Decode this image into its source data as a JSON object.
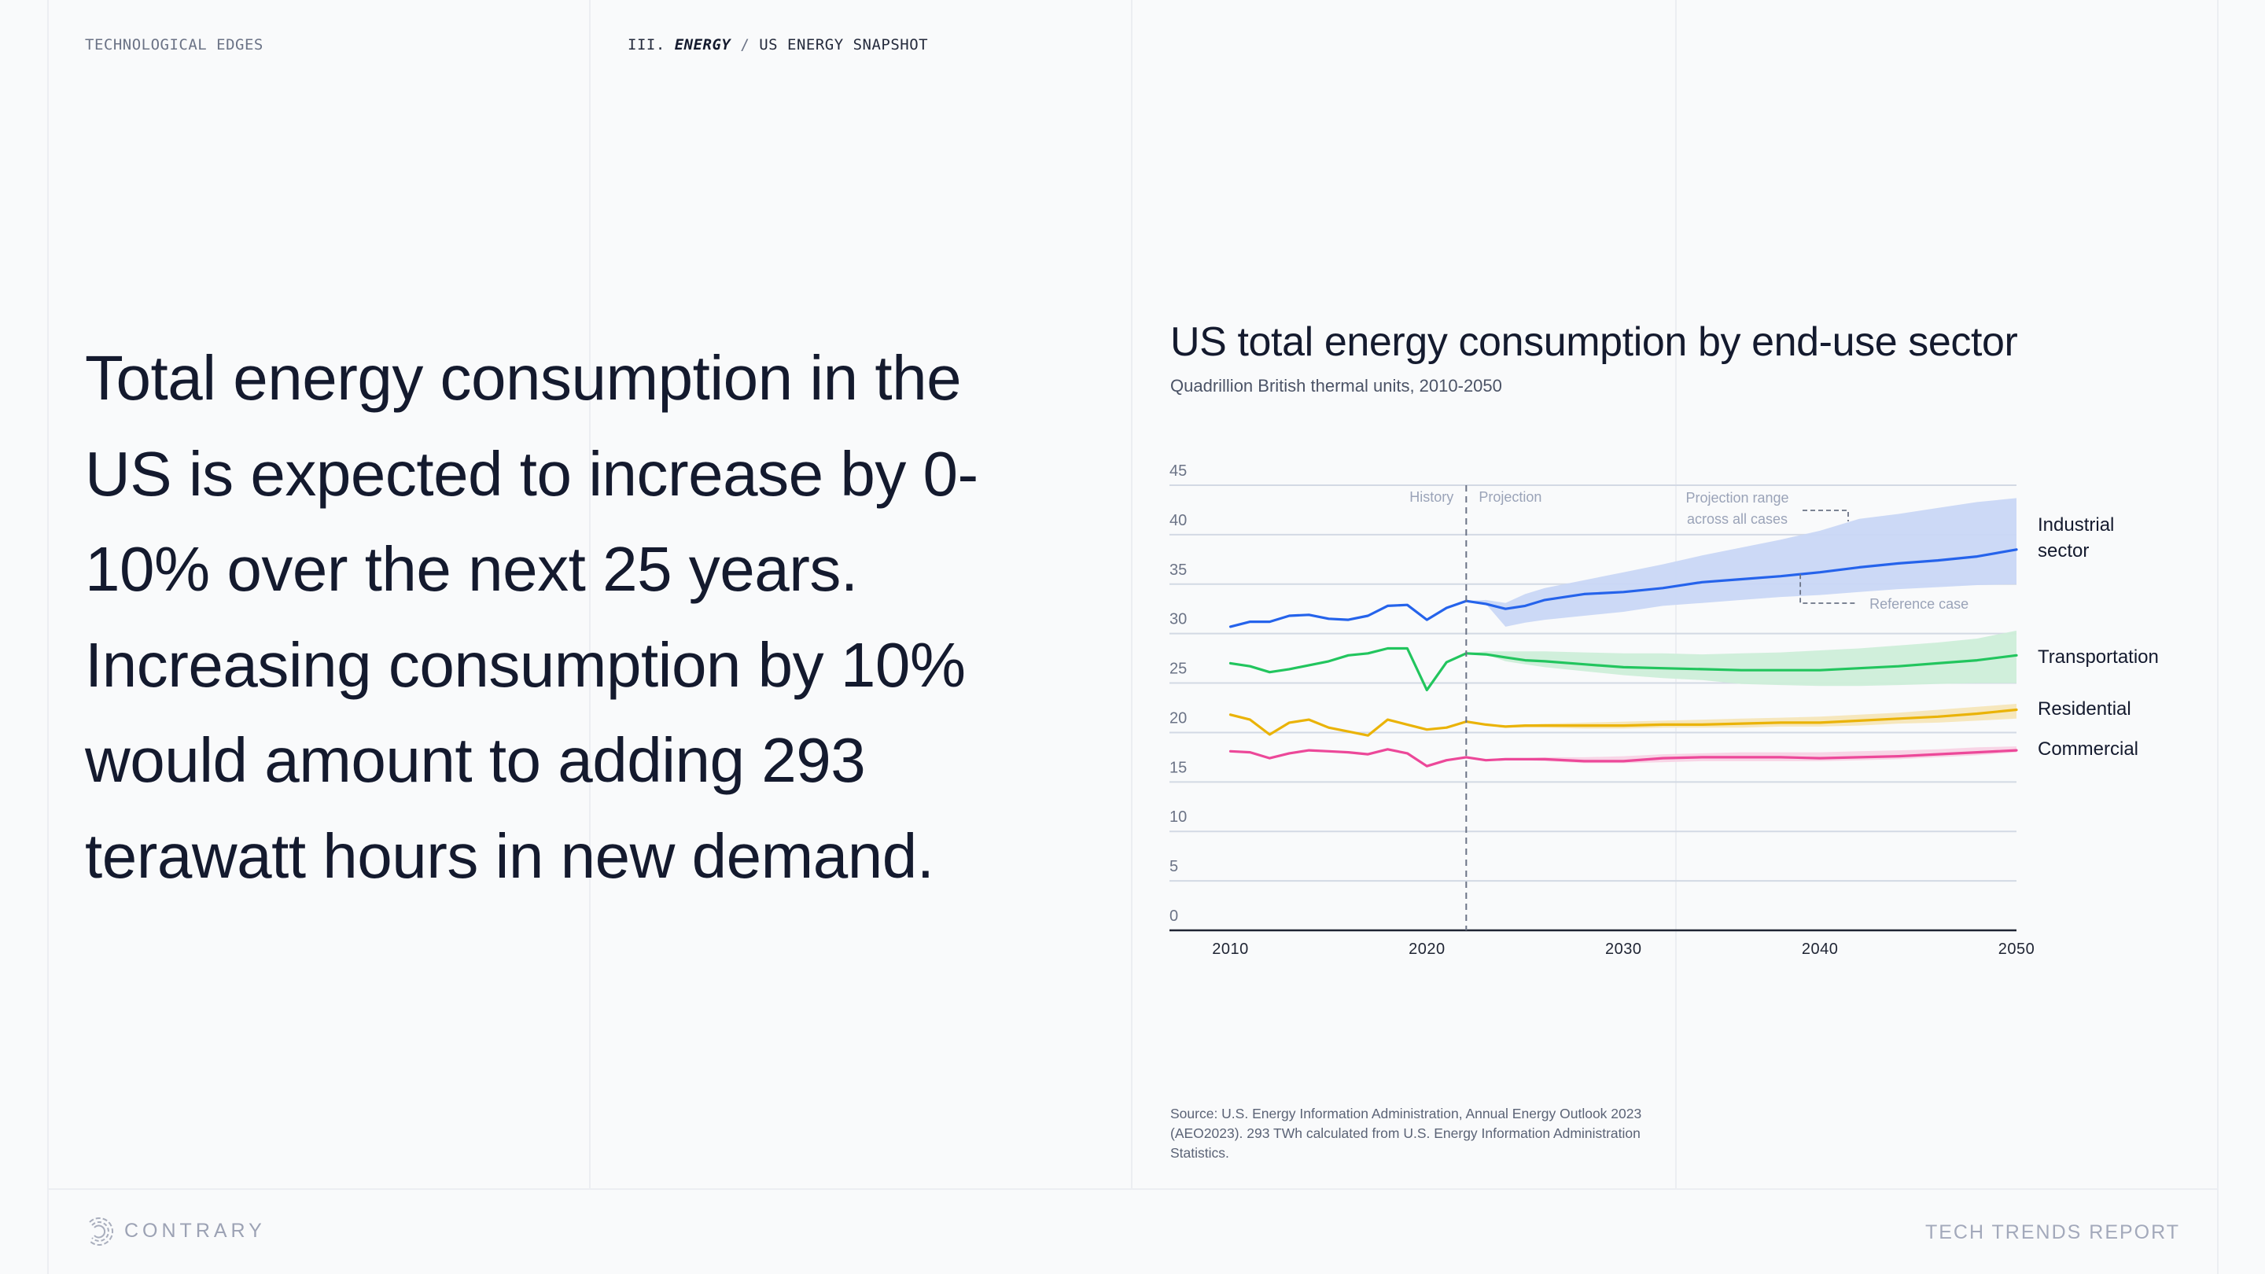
{
  "header": {
    "section_left": "TECHNOLOGICAL EDGES",
    "breadcrumb_prefix": "III.",
    "breadcrumb_section": "ENERGY",
    "breadcrumb_separator": "/",
    "breadcrumb_page": "US ENERGY SNAPSHOT"
  },
  "headline": "Total energy consumption in the US is expected to increase by 0-10% over the next 25 years. Increasing consumption by 10% would amount to adding 293 terawatt hours in new demand.",
  "footer": {
    "brand": "CONTRARY",
    "report": "TECH TRENDS REPORT",
    "logo_icon": "contrary-logo-icon"
  },
  "source": "Source: U.S. Energy Information Administration, Annual Energy Outlook 2023 (AEO2023). 293 TWh calculated from U.S. Energy Information Administration Statistics.",
  "chart_data": {
    "type": "line",
    "title": "US total energy consumption by end-use sector",
    "subtitle": "Quadrillion British thermal units, 2010-2050",
    "xlabel": "",
    "ylabel": "",
    "xlim": [
      2006.9,
      2050
    ],
    "ylim": [
      0,
      45
    ],
    "x_ticks": [
      2010,
      2020,
      2030,
      2040,
      2050
    ],
    "y_ticks": [
      0,
      5,
      10,
      15,
      20,
      25,
      30,
      35,
      40,
      45
    ],
    "grid": true,
    "legend": "right (direct labels at line ends)",
    "divider": {
      "x": 2022,
      "left_label": "History",
      "right_label": "Projection"
    },
    "annotations": {
      "range_label_line1": "Projection range",
      "range_label_line2": "across all cases",
      "reference_label": "Reference case",
      "range_pointer_x": 2039,
      "reference_pointer_x": 2039
    },
    "history_years": [
      2010,
      2011,
      2012,
      2013,
      2014,
      2015,
      2016,
      2017,
      2018,
      2019,
      2020,
      2021,
      2022
    ],
    "projection_years": [
      2022,
      2023,
      2024,
      2025,
      2026,
      2028,
      2030,
      2032,
      2034,
      2036,
      2038,
      2040,
      2042,
      2044,
      2046,
      2048,
      2050
    ],
    "series": [
      {
        "name": "Industrial sector",
        "label_lines": [
          "Industrial",
          "sector"
        ],
        "color": "#2563eb",
        "band_color": "#c9d7f6",
        "history": [
          30.7,
          31.2,
          31.2,
          31.8,
          31.9,
          31.5,
          31.4,
          31.8,
          32.8,
          32.9,
          31.4,
          32.6,
          33.3
        ],
        "reference": [
          33.3,
          33.0,
          32.5,
          32.8,
          33.4,
          34.0,
          34.2,
          34.6,
          35.2,
          35.5,
          35.8,
          36.2,
          36.7,
          37.1,
          37.4,
          37.8,
          38.5
        ],
        "range_high": [
          33.3,
          33.4,
          33.1,
          34.0,
          34.6,
          35.4,
          36.2,
          37.0,
          37.9,
          38.7,
          39.5,
          40.4,
          41.6,
          42.1,
          42.7,
          43.3,
          43.7
        ],
        "range_low": [
          33.3,
          33.0,
          30.7,
          31.1,
          31.4,
          31.8,
          32.2,
          32.8,
          33.1,
          33.4,
          33.7,
          33.9,
          34.2,
          34.5,
          34.7,
          34.9,
          35.0
        ]
      },
      {
        "name": "Transportation",
        "label_lines": [
          "Transportation"
        ],
        "color": "#22c55e",
        "band_color": "#cdeed9",
        "history": [
          27.0,
          26.7,
          26.1,
          26.4,
          26.8,
          27.2,
          27.8,
          28.0,
          28.5,
          28.5,
          24.3,
          27.1,
          28.0
        ],
        "reference": [
          28.0,
          27.9,
          27.6,
          27.3,
          27.2,
          26.9,
          26.6,
          26.5,
          26.4,
          26.3,
          26.3,
          26.3,
          26.5,
          26.7,
          27.0,
          27.3,
          27.8
        ],
        "range_high": [
          28.0,
          28.2,
          28.2,
          28.2,
          28.2,
          28.1,
          28.0,
          28.0,
          27.9,
          28.0,
          28.1,
          28.3,
          28.5,
          28.8,
          29.1,
          29.5,
          30.3
        ],
        "range_low": [
          28.0,
          27.9,
          27.2,
          26.9,
          26.6,
          26.2,
          25.8,
          25.5,
          25.3,
          24.9,
          24.8,
          24.7,
          24.7,
          24.8,
          24.9,
          25.0,
          25.0
        ]
      },
      {
        "name": "Residential",
        "label_lines": [
          "Residential"
        ],
        "color": "#eab308",
        "band_color": "#f6e6b9",
        "history": [
          21.8,
          21.3,
          19.8,
          21.0,
          21.3,
          20.5,
          20.1,
          19.7,
          21.3,
          20.8,
          20.3,
          20.5,
          21.1
        ],
        "reference": [
          21.1,
          20.8,
          20.6,
          20.7,
          20.7,
          20.7,
          20.7,
          20.8,
          20.8,
          20.9,
          21.0,
          21.0,
          21.2,
          21.4,
          21.6,
          21.9,
          22.3
        ],
        "range_high": [
          21.1,
          20.9,
          20.7,
          20.8,
          20.9,
          21.0,
          21.1,
          21.2,
          21.3,
          21.4,
          21.5,
          21.6,
          21.8,
          22.0,
          22.3,
          22.6,
          22.9
        ],
        "range_low": [
          21.1,
          20.7,
          20.5,
          20.5,
          20.5,
          20.4,
          20.4,
          20.5,
          20.5,
          20.5,
          20.6,
          20.6,
          20.7,
          20.9,
          21.0,
          21.2,
          21.4
        ]
      },
      {
        "name": "Commercial",
        "label_lines": [
          "Commercial"
        ],
        "color": "#ec4899",
        "band_color": "#f8d3e5",
        "history": [
          18.1,
          18.0,
          17.4,
          17.9,
          18.2,
          18.1,
          18.0,
          17.8,
          18.3,
          17.9,
          16.6,
          17.2,
          17.5
        ],
        "reference": [
          17.5,
          17.2,
          17.3,
          17.3,
          17.3,
          17.1,
          17.1,
          17.4,
          17.5,
          17.5,
          17.5,
          17.4,
          17.5,
          17.6,
          17.8,
          18.0,
          18.2
        ],
        "range_high": [
          17.5,
          17.3,
          17.4,
          17.4,
          17.5,
          17.5,
          17.6,
          17.8,
          17.9,
          18.0,
          18.0,
          18.0,
          18.1,
          18.2,
          18.3,
          18.5,
          18.6
        ],
        "range_low": [
          17.5,
          17.2,
          17.2,
          17.2,
          17.1,
          16.9,
          16.9,
          17.0,
          17.1,
          17.1,
          17.1,
          17.1,
          17.2,
          17.3,
          17.5,
          17.7,
          18.0
        ]
      }
    ]
  }
}
